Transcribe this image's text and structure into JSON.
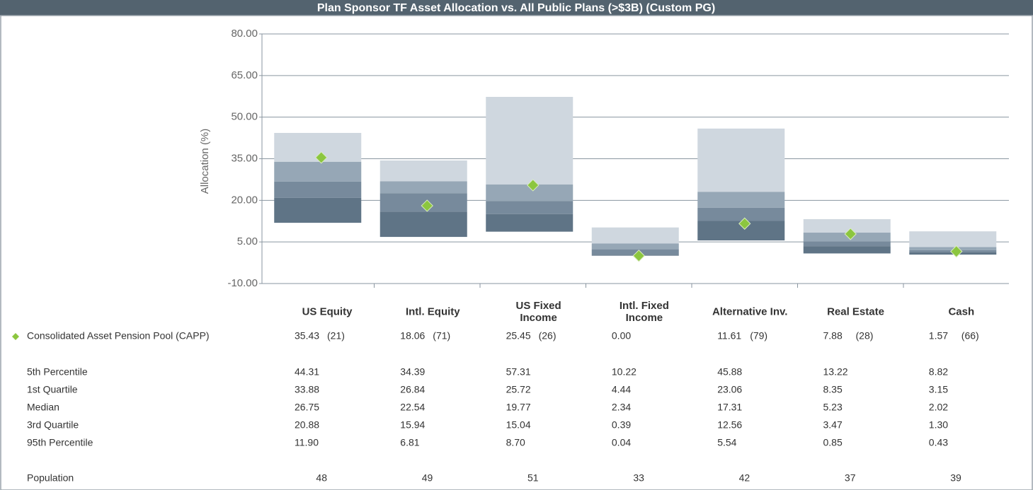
{
  "chart_data": {
    "type": "percentile_bar",
    "title": "Plan Sponsor TF Asset Allocation vs. All Public Plans (>$3B) (Custom PG)",
    "y_label": "Allocation (%)",
    "categories": [
      "US Equity",
      "Intl. Equity",
      "US Fixed Income",
      "Intl. Fixed Income",
      "Alternative Inv.",
      "Real Estate",
      "Cash"
    ],
    "ylim": [
      -10,
      80
    ],
    "yticks": [
      {
        "value": 80,
        "label": "80.00"
      },
      {
        "value": 65,
        "label": "65.00"
      },
      {
        "value": 50,
        "label": "50.00"
      },
      {
        "value": 35,
        "label": "35.00"
      },
      {
        "value": 20,
        "label": "20.00"
      },
      {
        "value": 5,
        "label": "5.00"
      },
      {
        "value": -10,
        "label": "-10.00"
      }
    ],
    "grid": true,
    "band_colors": [
      "#cfd7df",
      "#96a7b6",
      "#778a9c",
      "#5f7486"
    ],
    "plan": {
      "name": "Consolidated Asset Pension Pool (CAPP)",
      "color": "#8cc63f",
      "values": [
        35.43,
        18.06,
        25.45,
        0.0,
        11.61,
        7.88,
        1.57
      ],
      "value_labels": [
        "35.43",
        "18.06",
        "25.45",
        "0.00",
        "11.61",
        "7.88",
        "1.57"
      ],
      "rank_labels": [
        "(21)",
        "(71)",
        "(26)",
        null,
        "(79)",
        "(28)",
        "(66)"
      ]
    },
    "series": [
      {
        "name": "5th Percentile",
        "values": [
          44.31,
          34.39,
          57.31,
          10.22,
          45.88,
          13.22,
          8.82
        ],
        "value_labels": [
          "44.31",
          "34.39",
          "57.31",
          "10.22",
          "45.88",
          "13.22",
          "8.82"
        ]
      },
      {
        "name": "1st Quartile",
        "values": [
          33.88,
          26.84,
          25.72,
          4.44,
          23.06,
          8.35,
          3.15
        ],
        "value_labels": [
          "33.88",
          "26.84",
          "25.72",
          "4.44",
          "23.06",
          "8.35",
          "3.15"
        ]
      },
      {
        "name": "Median",
        "values": [
          26.75,
          22.54,
          19.77,
          2.34,
          17.31,
          5.23,
          2.02
        ],
        "value_labels": [
          "26.75",
          "22.54",
          "19.77",
          "2.34",
          "17.31",
          "5.23",
          "2.02"
        ]
      },
      {
        "name": "3rd Quartile",
        "values": [
          20.88,
          15.94,
          15.04,
          0.39,
          12.56,
          3.47,
          1.3
        ],
        "value_labels": [
          "20.88",
          "15.94",
          "15.04",
          "0.39",
          "12.56",
          "3.47",
          "1.30"
        ]
      },
      {
        "name": "95th Percentile",
        "values": [
          11.9,
          6.81,
          8.7,
          0.04,
          5.54,
          0.85,
          0.43
        ],
        "value_labels": [
          "11.90",
          "6.81",
          "8.70",
          "0.04",
          "5.54",
          "0.85",
          "0.43"
        ]
      }
    ],
    "population": {
      "label": "Population",
      "values": [
        48,
        49,
        51,
        33,
        42,
        37,
        39
      ]
    }
  }
}
